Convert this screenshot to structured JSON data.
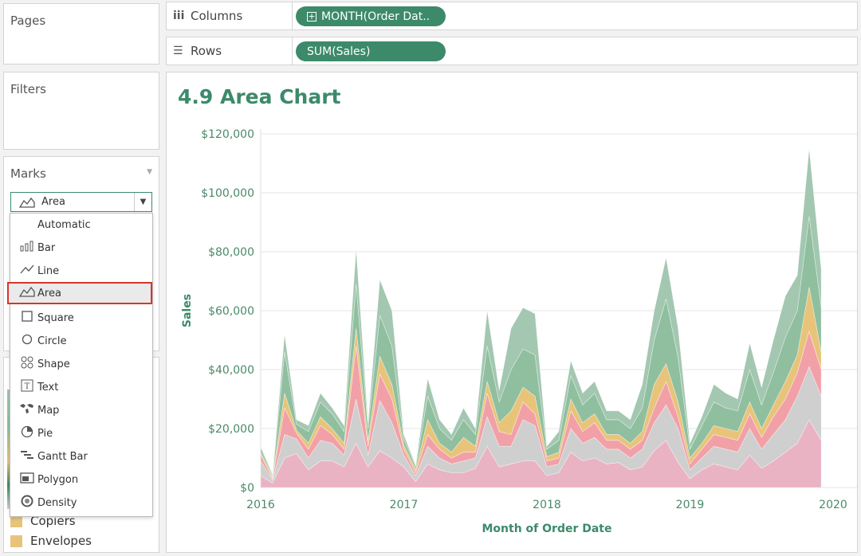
{
  "pages": {
    "title": "Pages"
  },
  "filters": {
    "title": "Filters"
  },
  "marks": {
    "title": "Marks",
    "selected_type": "Area"
  },
  "shelves": {
    "columns": {
      "label": "Columns",
      "pill": "MONTH(Order Dat.."
    },
    "rows": {
      "label": "Rows",
      "pill": "SUM(Sales)"
    }
  },
  "mark_menu": [
    {
      "label": "Automatic",
      "icon": "none"
    },
    {
      "label": "Bar",
      "icon": "bar-icon"
    },
    {
      "label": "Line",
      "icon": "line-icon"
    },
    {
      "label": "Area",
      "icon": "area-icon"
    },
    {
      "label": "Square",
      "icon": "square-icon"
    },
    {
      "label": "Circle",
      "icon": "circle-icon"
    },
    {
      "label": "Shape",
      "icon": "shape-icon"
    },
    {
      "label": "Text",
      "icon": "text-icon"
    },
    {
      "label": "Map",
      "icon": "map-icon"
    },
    {
      "label": "Pie",
      "icon": "pie-icon"
    },
    {
      "label": "Gantt Bar",
      "icon": "gantt-icon"
    },
    {
      "label": "Polygon",
      "icon": "polygon-icon"
    },
    {
      "label": "Density",
      "icon": "density-icon"
    }
  ],
  "legend": [
    {
      "label": "Copiers",
      "color": "#e8c47a"
    },
    {
      "label": "Envelopes",
      "color": "#e8c47a"
    }
  ],
  "colors": {
    "accent": "#3c8a6a",
    "highlight": "#d9352a"
  },
  "chart_data": {
    "type": "area",
    "title": "4.9 Area Chart",
    "xlabel": "Month of Order Date",
    "ylabel": "Sales",
    "x_ticks": [
      "2016",
      "2017",
      "2018",
      "2019",
      "2020"
    ],
    "y_ticks": [
      "$0",
      "$20,000",
      "$40,000",
      "$60,000",
      "$80,000",
      "$100,000",
      "$120,000"
    ],
    "ylim": [
      0,
      120000
    ],
    "xlim": [
      2016,
      2020
    ],
    "grid": true,
    "x": [
      2016.0,
      2016.083,
      2016.167,
      2016.25,
      2016.333,
      2016.417,
      2016.5,
      2016.583,
      2016.667,
      2016.75,
      2016.833,
      2016.917,
      2017.0,
      2017.083,
      2017.167,
      2017.25,
      2017.333,
      2017.417,
      2017.5,
      2017.583,
      2017.667,
      2017.75,
      2017.833,
      2017.917,
      2018.0,
      2018.083,
      2018.167,
      2018.25,
      2018.333,
      2018.417,
      2018.5,
      2018.583,
      2018.667,
      2018.75,
      2018.833,
      2018.917,
      2019.0,
      2019.083,
      2019.167,
      2019.25,
      2019.333,
      2019.417,
      2019.5,
      2019.583,
      2019.667,
      2019.75,
      2019.833,
      2019.917
    ],
    "series": [
      {
        "color": "#eab3c3",
        "values": [
          4000,
          1500,
          10000,
          11500,
          6000,
          9000,
          9000,
          7000,
          15000,
          7000,
          12500,
          10000,
          7000,
          2000,
          8000,
          6000,
          5000,
          5000,
          6500,
          14000,
          7000,
          8000,
          9000,
          9000,
          4000,
          5000,
          12000,
          9000,
          10000,
          8000,
          8500,
          6000,
          7000,
          12500,
          16000,
          8500,
          3000,
          6000,
          8000,
          7000,
          6000,
          11000,
          6500,
          9000,
          12000,
          15000,
          23000,
          16000
        ]
      },
      {
        "color": "#cfcfcf",
        "values": [
          5000,
          1000,
          8000,
          5000,
          4000,
          7000,
          6000,
          4000,
          15000,
          4000,
          17000,
          12000,
          4000,
          2000,
          6000,
          4000,
          3000,
          4000,
          3500,
          10000,
          7000,
          6000,
          14000,
          12000,
          3000,
          3000,
          8000,
          6000,
          7000,
          5000,
          4500,
          4000,
          6000,
          9500,
          12000,
          11500,
          3000,
          4000,
          6000,
          6000,
          6000,
          9000,
          6500,
          9000,
          11000,
          16000,
          18000,
          15000
        ]
      },
      {
        "color": "#f2a0a8",
        "values": [
          2000,
          500,
          9000,
          2000,
          3000,
          5000,
          3000,
          2000,
          18000,
          3000,
          9000,
          8000,
          2000,
          1000,
          4000,
          3000,
          2000,
          3000,
          2000,
          8000,
          5000,
          4000,
          6000,
          4000,
          2000,
          2000,
          6000,
          4000,
          5000,
          3000,
          3000,
          3000,
          3000,
          5000,
          8000,
          4000,
          2000,
          3000,
          4000,
          4000,
          4000,
          5000,
          4000,
          6000,
          7000,
          8000,
          12000,
          9000
        ]
      },
      {
        "color": "#e8c47a",
        "values": [
          1000,
          500,
          5000,
          1000,
          2000,
          3000,
          2000,
          2000,
          6000,
          2000,
          6000,
          5000,
          1500,
          1000,
          5000,
          2000,
          2000,
          5000,
          2000,
          4000,
          3000,
          8000,
          5000,
          6000,
          1500,
          2000,
          4000,
          3000,
          3000,
          2000,
          2000,
          2000,
          3000,
          8000,
          6000,
          5000,
          2000,
          2000,
          3000,
          3000,
          3000,
          4000,
          3000,
          4000,
          6000,
          6000,
          15000,
          6000
        ]
      },
      {
        "color": "#8fbf9f",
        "values": [
          1500,
          500,
          14000,
          2000,
          4000,
          5000,
          5000,
          4000,
          15000,
          4000,
          14000,
          13000,
          2000,
          1000,
          8000,
          5000,
          4000,
          6000,
          4000,
          12000,
          7000,
          14000,
          13000,
          14000,
          2500,
          4000,
          8000,
          6000,
          7000,
          5000,
          5000,
          5000,
          8000,
          15000,
          22000,
          15000,
          3000,
          6000,
          8000,
          7000,
          7000,
          11000,
          8000,
          11000,
          15000,
          15000,
          24000,
          15000
        ]
      },
      {
        "color": "#a3c7b0",
        "values": [
          500,
          500,
          6000,
          1500,
          2000,
          3000,
          2000,
          2000,
          12000,
          2000,
          12000,
          12000,
          1500,
          500,
          6000,
          3000,
          2000,
          4000,
          2000,
          12000,
          4000,
          14000,
          14000,
          14000,
          1000,
          3000,
          5000,
          4000,
          4000,
          3000,
          3000,
          3000,
          8000,
          10000,
          14000,
          10000,
          2000,
          3000,
          6000,
          5000,
          4000,
          9000,
          6000,
          11000,
          14000,
          12000,
          23000,
          13000
        ]
      }
    ]
  }
}
